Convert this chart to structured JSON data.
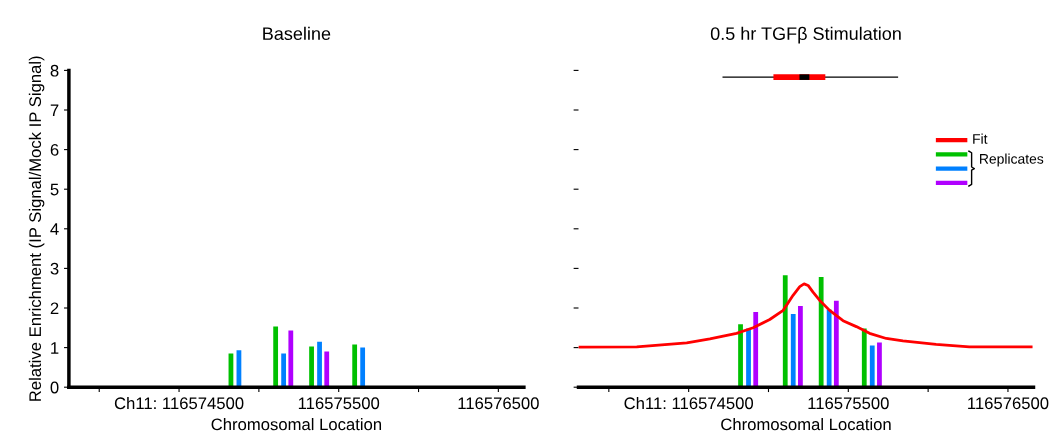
{
  "chart_data": [
    {
      "type": "bar",
      "title": "Baseline",
      "xlabel": "Chromosomal Location",
      "ylabel": "Relative Enrichment (IP Signal/Mock IP Signal)",
      "xlim": [
        116573810,
        116576660
      ],
      "xticks": [
        {
          "value": 116574000,
          "label": null
        },
        {
          "value": 116574500,
          "label": "Ch11: 116574500"
        },
        {
          "value": 116575000,
          "label": null
        },
        {
          "value": 116575500,
          "label": "116575500"
        },
        {
          "value": 116576000,
          "label": null
        },
        {
          "value": 116576500,
          "label": "116576500"
        }
      ],
      "ylim": [
        0,
        8
      ],
      "yticks": [
        0,
        1,
        2,
        3,
        4,
        5,
        6,
        7,
        8
      ],
      "grid": false,
      "legend": false,
      "series": [
        {
          "color": "#00c000",
          "x": [
            116574825,
            116575105,
            116575330,
            116575600
          ],
          "values": [
            0.85,
            1.53,
            1.03,
            1.08
          ]
        },
        {
          "color": "#0080ff",
          "x": [
            116574875,
            116575155,
            116575380,
            116575650
          ],
          "values": [
            0.93,
            0.85,
            1.15,
            1.0
          ]
        },
        {
          "color": "#b000ff",
          "x": [
            116575200,
            116575425
          ],
          "values": [
            1.43,
            0.9
          ]
        }
      ]
    },
    {
      "type": "bar",
      "title": "0.5 hr TGFβ Stimulation",
      "xlabel": "Chromosomal Location",
      "xlim": [
        116573810,
        116576660
      ],
      "xticks": [
        {
          "value": 116574000,
          "label": null
        },
        {
          "value": 116574500,
          "label": "Ch11: 116574500"
        },
        {
          "value": 116575000,
          "label": null
        },
        {
          "value": 116575500,
          "label": "116575500"
        },
        {
          "value": 116576000,
          "label": null
        },
        {
          "value": 116576500,
          "label": "116576500"
        }
      ],
      "ylim": [
        0,
        8
      ],
      "yticks": [
        0,
        1,
        2,
        3,
        4,
        5,
        6,
        7,
        8
      ],
      "tick_labels": "x",
      "grid": false,
      "legend": "right",
      "series": [
        {
          "name": "Fit",
          "type": "line",
          "color": "#ff0000",
          "x": [
            116573811,
            116574175,
            116574488,
            116574633,
            116574800,
            116574904,
            116575008,
            116575092,
            116575154,
            116575196,
            116575223,
            116575248,
            116575279,
            116575321,
            116575383,
            116575467,
            116575550,
            116575633,
            116575738,
            116575842,
            116576050,
            116576258,
            116576654
          ],
          "values": [
            1.01,
            1.02,
            1.12,
            1.22,
            1.36,
            1.5,
            1.71,
            1.94,
            2.32,
            2.54,
            2.61,
            2.57,
            2.4,
            2.19,
            1.94,
            1.68,
            1.53,
            1.36,
            1.23,
            1.17,
            1.08,
            1.02,
            1.02
          ]
        },
        {
          "name": "Replicates",
          "color": "#00c000",
          "x": [
            116574825,
            116575105,
            116575330,
            116575600
          ],
          "values": [
            1.59,
            2.83,
            2.78,
            1.48
          ]
        },
        {
          "color": "#0080ff",
          "x": [
            116574875,
            116575155,
            116575380,
            116575650
          ],
          "values": [
            1.48,
            1.85,
            1.96,
            1.05
          ]
        },
        {
          "color": "#b000ff",
          "x": [
            116574920,
            116575200,
            116575425,
            116575695
          ],
          "values": [
            1.9,
            2.05,
            2.18,
            1.13
          ]
        },
        {
          "type": "line",
          "color": "#000000",
          "x": [
            116574712,
            116575812
          ],
          "values": [
            7.83,
            7.83
          ]
        },
        {
          "type": "line",
          "color": "#ff0000",
          "x": [
            116575031,
            116575356
          ],
          "values": [
            7.83,
            7.83
          ]
        },
        {
          "type": "line",
          "color": "#000000",
          "x": [
            116575194,
            116575256
          ],
          "values": [
            7.83,
            7.83
          ]
        }
      ]
    }
  ]
}
